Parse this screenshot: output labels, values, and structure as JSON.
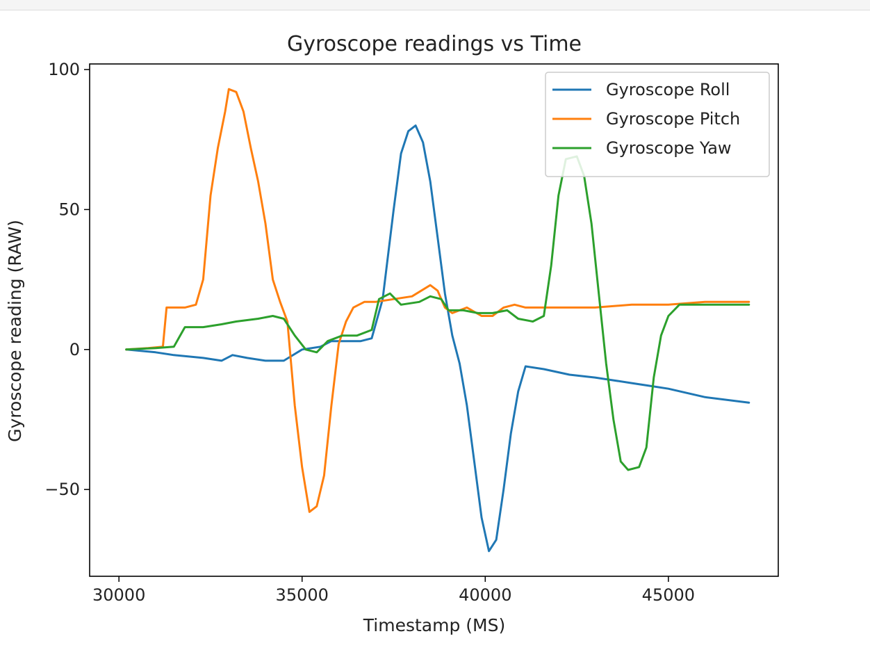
{
  "chart_data": {
    "type": "line",
    "title": "Gyroscope readings vs Time",
    "xlabel": "Timestamp (MS)",
    "ylabel": "Gyroscope reading (RAW)",
    "xlim": [
      29200,
      48000
    ],
    "ylim": [
      -81,
      102
    ],
    "xticks": [
      30000,
      35000,
      40000,
      45000
    ],
    "yticks": [
      -50,
      0,
      50,
      100
    ],
    "ytick_labels": [
      "−50",
      "0",
      "50",
      "100"
    ],
    "grid": false,
    "legend_position": "top-right",
    "series": [
      {
        "name": "Gyroscope Roll",
        "color": "#1f77b4",
        "points": [
          [
            30200,
            0
          ],
          [
            31000,
            -1
          ],
          [
            31500,
            -2
          ],
          [
            32300,
            -3
          ],
          [
            32800,
            -4
          ],
          [
            33100,
            -2
          ],
          [
            33500,
            -3
          ],
          [
            34000,
            -4
          ],
          [
            34500,
            -4
          ],
          [
            35000,
            0
          ],
          [
            35500,
            1
          ],
          [
            35800,
            3
          ],
          [
            36100,
            3
          ],
          [
            36600,
            3
          ],
          [
            36900,
            4
          ],
          [
            37200,
            18
          ],
          [
            37500,
            50
          ],
          [
            37700,
            70
          ],
          [
            37900,
            78
          ],
          [
            38100,
            80
          ],
          [
            38300,
            74
          ],
          [
            38500,
            60
          ],
          [
            38700,
            40
          ],
          [
            38900,
            20
          ],
          [
            39100,
            5
          ],
          [
            39300,
            -5
          ],
          [
            39500,
            -20
          ],
          [
            39700,
            -40
          ],
          [
            39900,
            -60
          ],
          [
            40100,
            -72
          ],
          [
            40300,
            -68
          ],
          [
            40500,
            -50
          ],
          [
            40700,
            -30
          ],
          [
            40900,
            -15
          ],
          [
            41100,
            -6
          ],
          [
            41600,
            -7
          ],
          [
            42300,
            -9
          ],
          [
            43000,
            -10
          ],
          [
            43500,
            -11
          ],
          [
            44000,
            -12
          ],
          [
            44500,
            -13
          ],
          [
            45000,
            -14
          ],
          [
            46000,
            -17
          ],
          [
            47200,
            -19
          ]
        ]
      },
      {
        "name": "Gyroscope Pitch",
        "color": "#ff7f0e",
        "points": [
          [
            30200,
            0
          ],
          [
            30800,
            0.5
          ],
          [
            31200,
            1
          ],
          [
            31300,
            15
          ],
          [
            31800,
            15
          ],
          [
            32100,
            16
          ],
          [
            32300,
            25
          ],
          [
            32500,
            55
          ],
          [
            32700,
            72
          ],
          [
            32900,
            85
          ],
          [
            33000,
            93
          ],
          [
            33200,
            92
          ],
          [
            33400,
            85
          ],
          [
            33600,
            72
          ],
          [
            33800,
            60
          ],
          [
            34000,
            45
          ],
          [
            34200,
            25
          ],
          [
            34400,
            17
          ],
          [
            34600,
            10
          ],
          [
            34700,
            -5
          ],
          [
            34800,
            -20
          ],
          [
            35000,
            -42
          ],
          [
            35200,
            -58
          ],
          [
            35400,
            -56
          ],
          [
            35600,
            -45
          ],
          [
            35800,
            -20
          ],
          [
            36000,
            2
          ],
          [
            36200,
            10
          ],
          [
            36400,
            15
          ],
          [
            36700,
            17
          ],
          [
            37000,
            17
          ],
          [
            37500,
            18
          ],
          [
            38000,
            19
          ],
          [
            38500,
            23
          ],
          [
            38700,
            21
          ],
          [
            38900,
            15
          ],
          [
            39100,
            13
          ],
          [
            39500,
            15
          ],
          [
            39900,
            12
          ],
          [
            40200,
            12
          ],
          [
            40500,
            15
          ],
          [
            40800,
            16
          ],
          [
            41100,
            15
          ],
          [
            42000,
            15
          ],
          [
            43000,
            15
          ],
          [
            44000,
            16
          ],
          [
            45000,
            16
          ],
          [
            46000,
            17
          ],
          [
            47200,
            17
          ]
        ]
      },
      {
        "name": "Gyroscope Yaw",
        "color": "#2ca02c",
        "points": [
          [
            30200,
            0
          ],
          [
            31000,
            0.5
          ],
          [
            31500,
            1
          ],
          [
            31800,
            8
          ],
          [
            32300,
            8
          ],
          [
            32800,
            9
          ],
          [
            33200,
            10
          ],
          [
            33800,
            11
          ],
          [
            34200,
            12
          ],
          [
            34500,
            11
          ],
          [
            34800,
            5
          ],
          [
            35100,
            0
          ],
          [
            35400,
            -1
          ],
          [
            35700,
            3
          ],
          [
            36100,
            5
          ],
          [
            36500,
            5
          ],
          [
            36900,
            7
          ],
          [
            37100,
            18
          ],
          [
            37400,
            20
          ],
          [
            37700,
            16
          ],
          [
            38200,
            17
          ],
          [
            38500,
            19
          ],
          [
            38800,
            18
          ],
          [
            39000,
            14
          ],
          [
            39400,
            14
          ],
          [
            39800,
            13
          ],
          [
            40200,
            13
          ],
          [
            40600,
            14
          ],
          [
            40900,
            11
          ],
          [
            41300,
            10
          ],
          [
            41600,
            12
          ],
          [
            41800,
            30
          ],
          [
            42000,
            55
          ],
          [
            42200,
            68
          ],
          [
            42500,
            69
          ],
          [
            42700,
            62
          ],
          [
            42900,
            45
          ],
          [
            43100,
            20
          ],
          [
            43300,
            -5
          ],
          [
            43500,
            -25
          ],
          [
            43700,
            -40
          ],
          [
            43900,
            -43
          ],
          [
            44200,
            -42
          ],
          [
            44400,
            -35
          ],
          [
            44600,
            -10
          ],
          [
            44800,
            5
          ],
          [
            45000,
            12
          ],
          [
            45300,
            16
          ],
          [
            46000,
            16
          ],
          [
            47200,
            16
          ]
        ]
      }
    ]
  }
}
